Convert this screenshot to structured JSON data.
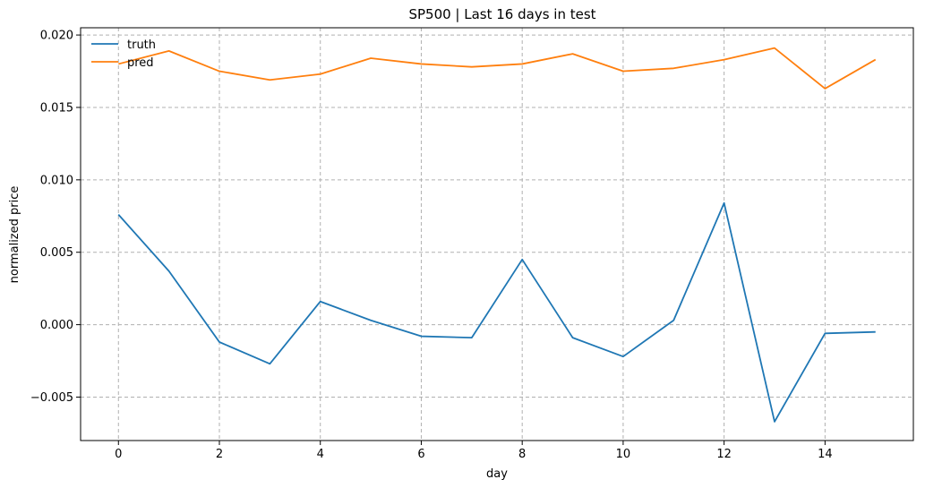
{
  "chart_data": {
    "type": "line",
    "title": "SP500 | Last 16 days in test",
    "xlabel": "day",
    "ylabel": "normalized price",
    "xlim": [
      -0.75,
      15.75
    ],
    "ylim": [
      -0.008,
      0.0205
    ],
    "x_ticks": [
      0,
      2,
      4,
      6,
      8,
      10,
      12,
      14
    ],
    "x_tick_labels": [
      "0",
      "2",
      "4",
      "6",
      "8",
      "10",
      "12",
      "14"
    ],
    "y_ticks": [
      -0.005,
      0.0,
      0.005,
      0.01,
      0.015,
      0.02
    ],
    "y_tick_labels": [
      "−0.005",
      "0.000",
      "0.005",
      "0.010",
      "0.015",
      "0.020"
    ],
    "grid": true,
    "legend_position": "top-left",
    "x": [
      0,
      1,
      2,
      3,
      4,
      5,
      6,
      7,
      8,
      9,
      10,
      11,
      12,
      13,
      14,
      15
    ],
    "series": [
      {
        "name": "truth",
        "color": "#1f77b4",
        "values": [
          0.0076,
          0.0037,
          -0.0012,
          -0.0027,
          0.0016,
          0.0003,
          -0.0008,
          -0.0009,
          0.0045,
          -0.0009,
          -0.0022,
          0.0003,
          0.0084,
          -0.0067,
          -0.0006,
          -0.0005
        ]
      },
      {
        "name": "pred",
        "color": "#ff7f0e",
        "values": [
          0.018,
          0.0189,
          0.0175,
          0.0169,
          0.0173,
          0.0184,
          0.018,
          0.0178,
          0.018,
          0.0187,
          0.0175,
          0.0177,
          0.0183,
          0.0191,
          0.0163,
          0.0183
        ]
      }
    ]
  }
}
